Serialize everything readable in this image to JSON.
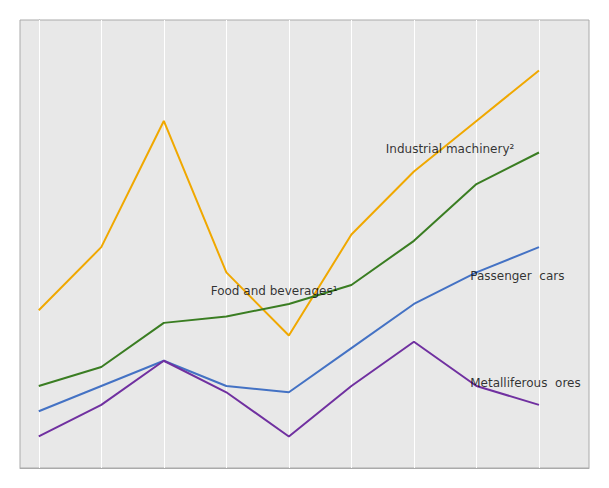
{
  "chart_data": {
    "type": "line",
    "x": [
      0,
      1,
      2,
      3,
      4,
      5,
      6,
      7,
      8
    ],
    "series": [
      {
        "color": "#f0a800",
        "values": [
          32,
          42,
          62,
          38,
          28,
          44,
          54,
          62,
          70
        ]
      },
      {
        "color": "#3a7d22",
        "values": [
          20,
          23,
          30,
          31,
          33,
          36,
          43,
          52,
          57
        ]
      },
      {
        "color": "#4472c4",
        "values": [
          16,
          20,
          24,
          20,
          19,
          26,
          33,
          38,
          42
        ]
      },
      {
        "color": "#7030a0",
        "values": [
          12,
          17,
          24,
          19,
          12,
          20,
          27,
          20,
          17
        ]
      }
    ],
    "xlim": [
      -0.3,
      8.8
    ],
    "ylim": [
      7,
      78
    ],
    "xticks": [
      0,
      1,
      2,
      3,
      4,
      5,
      6,
      7,
      8
    ],
    "yticks": [],
    "grid": true,
    "tick_labels": false,
    "annotations": [
      {
        "x": 5.55,
        "y": 57.5,
        "text": "Industrial machinery²"
      },
      {
        "x": 2.75,
        "y": 35.0,
        "text": "Food and beverages¹"
      },
      {
        "x": 6.9,
        "y": 37.5,
        "text": "Passenger  cars"
      },
      {
        "x": 6.9,
        "y": 20.5,
        "text": "Metalliferous  ores"
      }
    ]
  }
}
